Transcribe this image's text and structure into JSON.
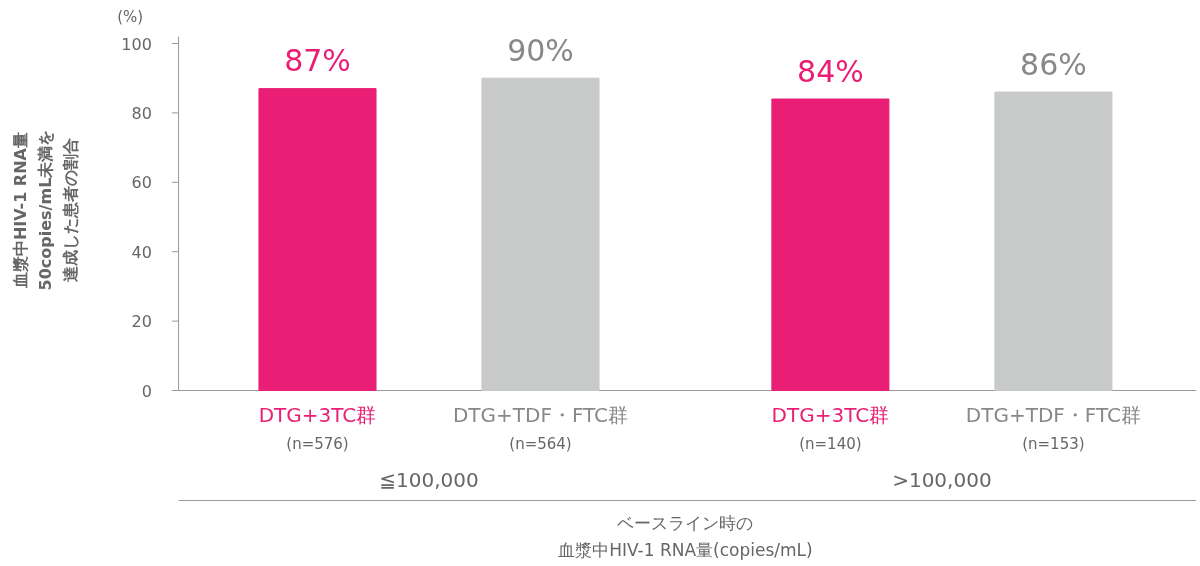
{
  "chart_data": {
    "type": "bar",
    "categories": [
      "DTG+3TC群\n(n=576)",
      "DTG+TDF・FTC群\n(n=564)",
      "DTG+3TC群\n(n=140)",
      "DTG+TDF・FTC群\n(n=153)"
    ],
    "values": [
      87,
      90,
      84,
      86
    ],
    "colors": [
      "#e91e74",
      "#c8c9c9",
      "#e91e74",
      "#c8c9c9"
    ],
    "value_labels": [
      "87%",
      "90%",
      "84%",
      "86%"
    ],
    "ylabel": "血漿中HIV-1 RNA量50copies/mL未満を達成した患者の割合",
    "xlabel": "ベースライン時の血漿中HIV-1 RNA量(copies/mL)",
    "annotations": [
      "(%)",
      "≦100,000",
      ">100,000"
    ],
    "ylim": [
      0,
      102
    ],
    "yticks": [
      0,
      20,
      40,
      60,
      80,
      100
    ],
    "grid": false
  }
}
